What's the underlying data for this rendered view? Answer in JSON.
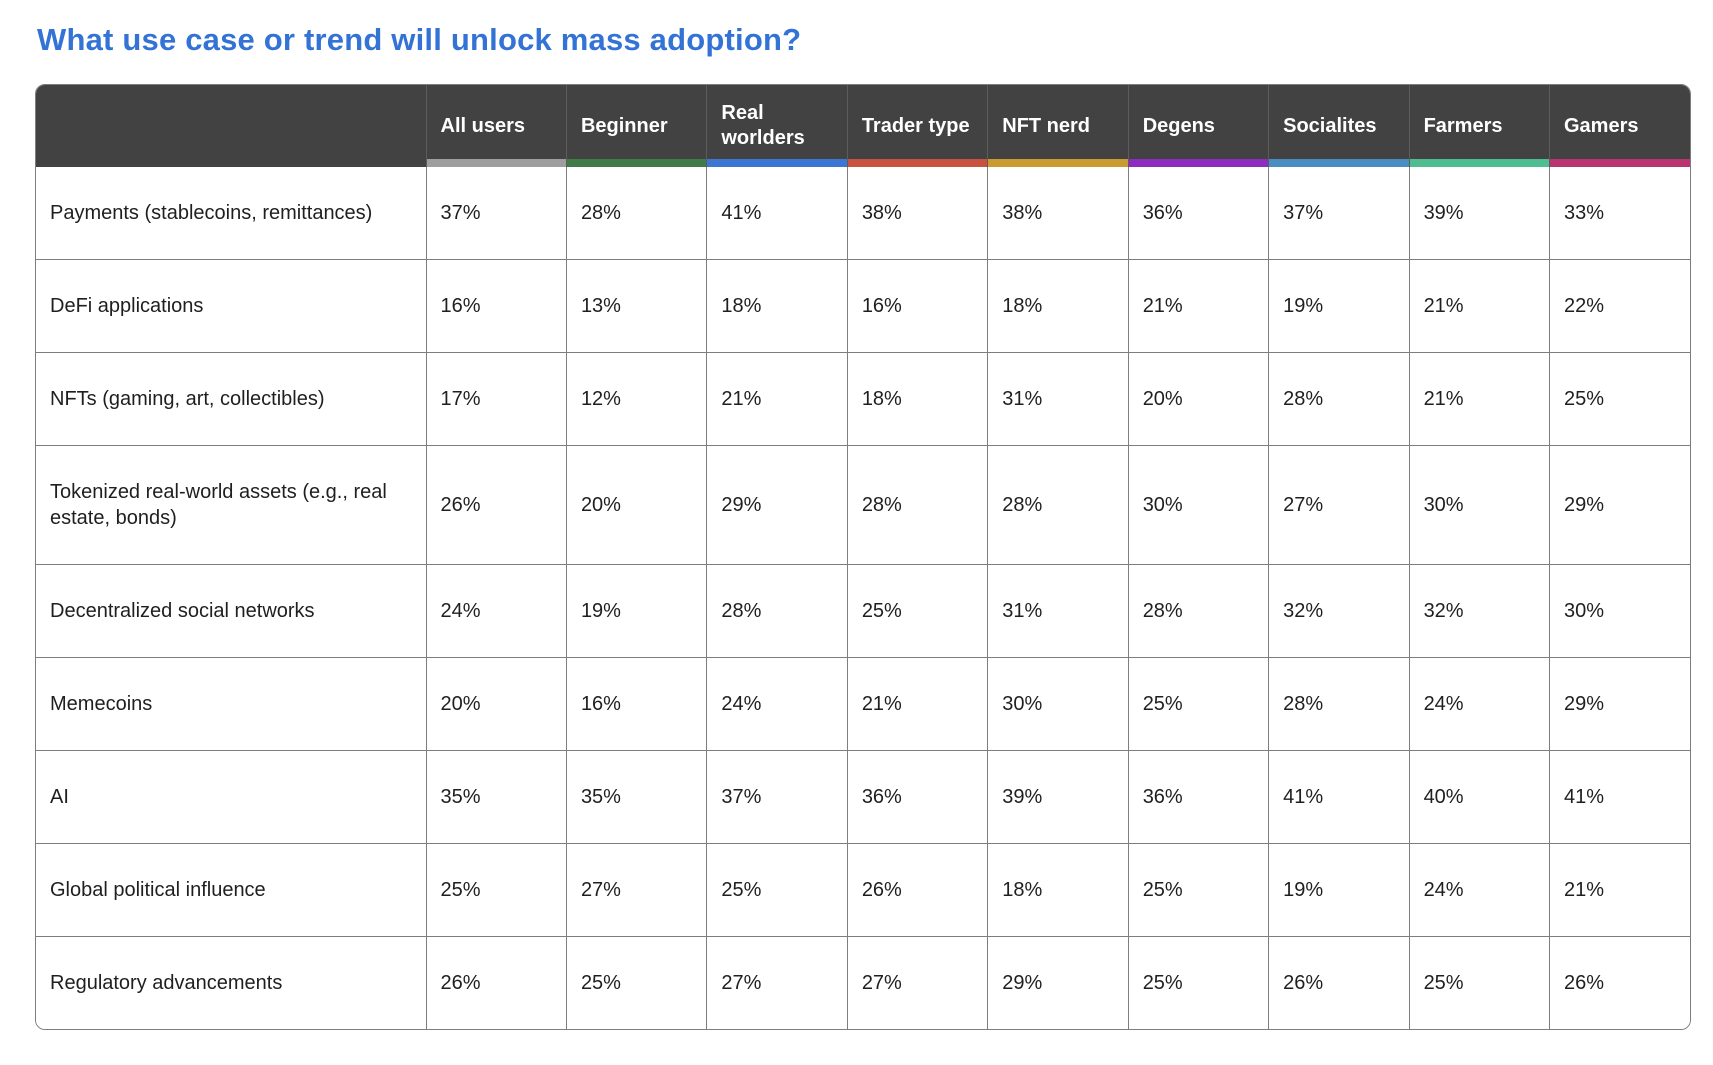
{
  "page": {
    "title": "What use case or trend will unlock mass adoption?",
    "title_color": "#3473d6",
    "background": "#ffffff"
  },
  "table": {
    "header_bg": "#424242",
    "header_text_color": "#ffffff",
    "border_color": "#7d7d7d",
    "columns": [
      {
        "label": "All users",
        "accent": "#9e9e9e"
      },
      {
        "label": "Beginner",
        "accent": "#417c48"
      },
      {
        "label": "Real worlders",
        "accent": "#3c76d3"
      },
      {
        "label": "Trader type",
        "accent": "#c8523f"
      },
      {
        "label": "NFT nerd",
        "accent": "#c99b31"
      },
      {
        "label": "Degens",
        "accent": "#8d2dc0"
      },
      {
        "label": "Socialites",
        "accent": "#4a8dc0"
      },
      {
        "label": "Farmers",
        "accent": "#50bd90"
      },
      {
        "label": "Gamers",
        "accent": "#ba3471"
      }
    ],
    "rows": [
      {
        "label": "Payments (stablecoins, remittances)",
        "values": [
          "37%",
          "28%",
          "41%",
          "38%",
          "38%",
          "36%",
          "37%",
          "39%",
          "33%"
        ]
      },
      {
        "label": "DeFi applications",
        "values": [
          "16%",
          "13%",
          "18%",
          "16%",
          "18%",
          "21%",
          "19%",
          "21%",
          "22%"
        ]
      },
      {
        "label": "NFTs (gaming, art, collectibles)",
        "values": [
          "17%",
          "12%",
          "21%",
          "18%",
          "31%",
          "20%",
          "28%",
          "21%",
          "25%"
        ]
      },
      {
        "label": "Tokenized real-world assets (e.g., real estate, bonds)",
        "values": [
          "26%",
          "20%",
          "29%",
          "28%",
          "28%",
          "30%",
          "27%",
          "30%",
          "29%"
        ]
      },
      {
        "label": "Decentralized social networks",
        "values": [
          "24%",
          "19%",
          "28%",
          "25%",
          "31%",
          "28%",
          "32%",
          "32%",
          "30%"
        ]
      },
      {
        "label": "Memecoins",
        "values": [
          "20%",
          "16%",
          "24%",
          "21%",
          "30%",
          "25%",
          "28%",
          "24%",
          "29%"
        ]
      },
      {
        "label": "AI",
        "values": [
          "35%",
          "35%",
          "37%",
          "36%",
          "39%",
          "36%",
          "41%",
          "40%",
          "41%"
        ]
      },
      {
        "label": "Global political influence",
        "values": [
          "25%",
          "27%",
          "25%",
          "26%",
          "18%",
          "25%",
          "19%",
          "24%",
          "21%"
        ]
      },
      {
        "label": "Regulatory advancements",
        "values": [
          "26%",
          "25%",
          "27%",
          "27%",
          "29%",
          "25%",
          "26%",
          "25%",
          "26%"
        ]
      }
    ]
  },
  "chart_data": {
    "type": "table",
    "title": "What use case or trend will unlock mass adoption?",
    "columns": [
      "All users",
      "Beginner",
      "Real worlders",
      "Trader type",
      "NFT nerd",
      "Degens",
      "Socialites",
      "Farmers",
      "Gamers"
    ],
    "row_labels": [
      "Payments (stablecoins, remittances)",
      "DeFi applications",
      "NFTs (gaming, art, collectibles)",
      "Tokenized real-world assets (e.g., real estate, bonds)",
      "Decentralized social networks",
      "Memecoins",
      "AI",
      "Global political influence",
      "Regulatory advancements"
    ],
    "values_percent": [
      [
        37,
        28,
        41,
        38,
        38,
        36,
        37,
        39,
        33
      ],
      [
        16,
        13,
        18,
        16,
        18,
        21,
        19,
        21,
        22
      ],
      [
        17,
        12,
        21,
        18,
        31,
        20,
        28,
        21,
        25
      ],
      [
        26,
        20,
        29,
        28,
        28,
        30,
        27,
        30,
        29
      ],
      [
        24,
        19,
        28,
        25,
        31,
        28,
        32,
        32,
        30
      ],
      [
        20,
        16,
        24,
        21,
        30,
        25,
        28,
        24,
        29
      ],
      [
        35,
        35,
        37,
        36,
        39,
        36,
        41,
        40,
        41
      ],
      [
        25,
        27,
        25,
        26,
        18,
        25,
        19,
        24,
        21
      ],
      [
        26,
        25,
        27,
        27,
        29,
        25,
        26,
        25,
        26
      ]
    ]
  }
}
